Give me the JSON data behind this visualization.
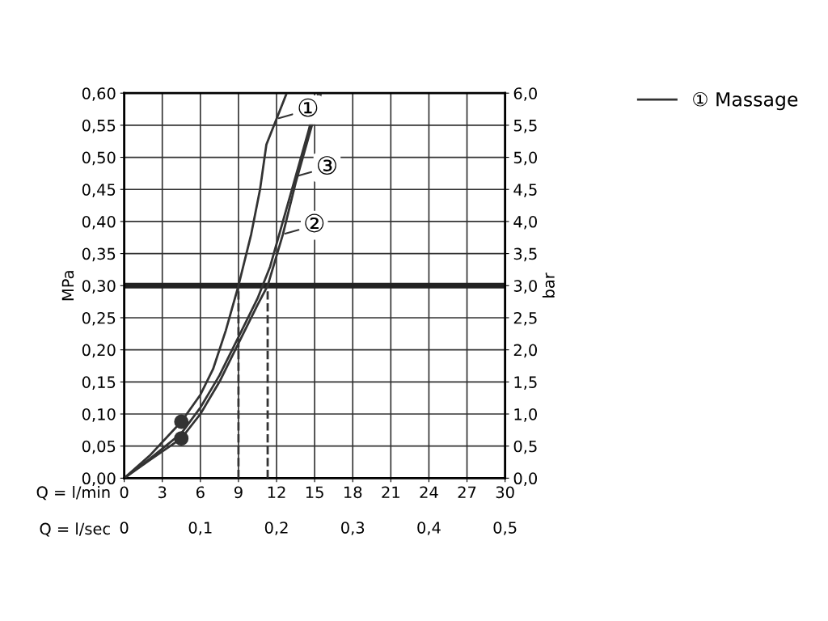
{
  "chart_data": {
    "type": "line",
    "xlabel": "Q = l/min",
    "x2label": "Q = l/sec",
    "ylabel": "MPa",
    "y2label": "bar",
    "xlim": [
      0,
      30
    ],
    "xticks": [
      0,
      3,
      6,
      9,
      12,
      15,
      18,
      21,
      24,
      27,
      30
    ],
    "x2lim": [
      0,
      0.5
    ],
    "x2ticks": [
      0,
      {
        "value": 0.1,
        "label": "0,1"
      },
      {
        "value": 0.2,
        "label": "0,2"
      },
      {
        "value": 0.3,
        "label": "0,3"
      },
      {
        "value": 0.4,
        "label": "0,4"
      },
      {
        "value": 0.5,
        "label": "0,5"
      }
    ],
    "ylim": [
      0,
      0.6
    ],
    "yticks": [
      {
        "value": 0,
        "label": "0,00"
      },
      {
        "value": 0.05,
        "label": "0,05"
      },
      {
        "value": 0.1,
        "label": "0,10"
      },
      {
        "value": 0.15,
        "label": "0,15"
      },
      {
        "value": 0.2,
        "label": "0,20"
      },
      {
        "value": 0.25,
        "label": "0,25"
      },
      {
        "value": 0.3,
        "label": "0,30"
      },
      {
        "value": 0.35,
        "label": "0,35"
      },
      {
        "value": 0.4,
        "label": "0,40"
      },
      {
        "value": 0.45,
        "label": "0,45"
      },
      {
        "value": 0.5,
        "label": "0,50"
      },
      {
        "value": 0.55,
        "label": "0,55"
      },
      {
        "value": 0.6,
        "label": "0,60"
      }
    ],
    "y2lim": [
      0,
      6
    ],
    "y2ticks": [
      {
        "value": 0,
        "label": "0,0"
      },
      {
        "value": 0.5,
        "label": "0,5"
      },
      {
        "value": 1,
        "label": "1,0"
      },
      {
        "value": 1.5,
        "label": "1,5"
      },
      {
        "value": 2,
        "label": "2,0"
      },
      {
        "value": 2.5,
        "label": "2,5"
      },
      {
        "value": 3,
        "label": "3,0"
      },
      {
        "value": 3.5,
        "label": "3,5"
      },
      {
        "value": 4,
        "label": "4,0"
      },
      {
        "value": 4.5,
        "label": "4,5"
      },
      {
        "value": 5,
        "label": "5,0"
      },
      {
        "value": 5.5,
        "label": "5,5"
      },
      {
        "value": 6,
        "label": "6,0"
      }
    ],
    "grid": true,
    "legend": "top right",
    "series": [
      {
        "name": "① Massage",
        "color": "#333333",
        "x": [
          0,
          2,
          4.5,
          6,
          7,
          8,
          9,
          10,
          10.7,
          11.2,
          12,
          12.8
        ],
        "values": [
          0,
          0.035,
          0.088,
          0.13,
          0.17,
          0.23,
          0.3,
          0.38,
          0.45,
          0.52,
          0.56,
          0.6
        ]
      },
      {
        "color": "#333333",
        "x": [
          0,
          2,
          4.5,
          6,
          7.5,
          9,
          10.5,
          11.3,
          12.5,
          13.5,
          14.5,
          15.5
        ],
        "values": [
          0,
          0.028,
          0.062,
          0.1,
          0.15,
          0.21,
          0.27,
          0.3,
          0.38,
          0.46,
          0.53,
          0.6
        ]
      },
      {
        "color": "#333333",
        "x": [
          0,
          2,
          4.5,
          6,
          7.5,
          9,
          10.5,
          11.5,
          12.5,
          13.5,
          14.5,
          15.3
        ],
        "values": [
          0,
          0.03,
          0.07,
          0.11,
          0.16,
          0.22,
          0.28,
          0.33,
          0.4,
          0.47,
          0.54,
          0.6
        ]
      },
      {
        "type": "scatter",
        "marker": "circle",
        "color": "#333333",
        "x": [
          4.5,
          4.5
        ],
        "values": [
          0.088,
          0.062
        ]
      },
      {
        "color": "#333333",
        "line_style": "dashed",
        "x": [
          9,
          9
        ],
        "values": [
          0,
          0.3
        ]
      },
      {
        "color": "#333333",
        "line_style": "dashed",
        "x": [
          11.3,
          11.3
        ],
        "values": [
          0,
          0.3
        ]
      }
    ],
    "ref_lines": [
      {
        "axis": "y",
        "value": 0.3,
        "color": "#222222"
      }
    ],
    "annotations": [
      {
        "text": "①",
        "x": 12,
        "y": 0.56
      },
      {
        "text": "②",
        "x": 12.5,
        "y": 0.38
      },
      {
        "text": "③",
        "x": 13.5,
        "y": 0.47
      }
    ]
  }
}
